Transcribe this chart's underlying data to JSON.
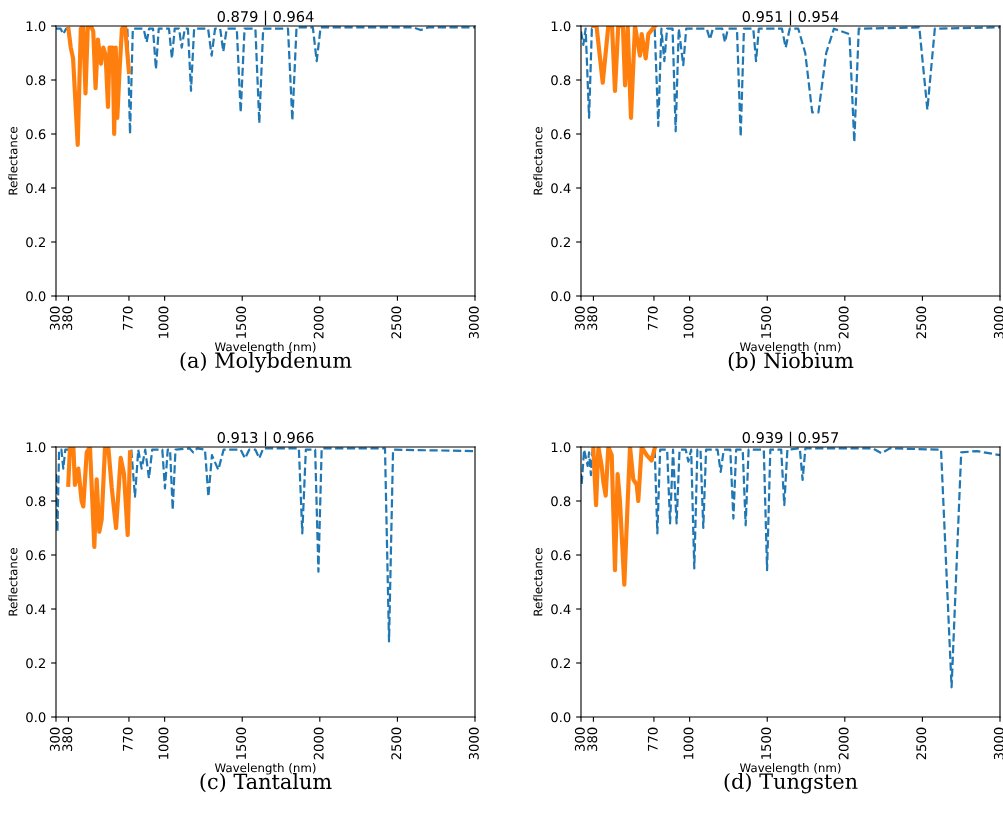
{
  "chart_data": [
    {
      "type": "line",
      "title": "0.879 | 0.964",
      "xlabel": "Wavelength (nm)",
      "ylabel": "Reflectance",
      "xlim": [
        300,
        3000
      ],
      "ylim": [
        0,
        1.0
      ],
      "xticks": [
        300,
        380,
        770,
        1000,
        1500,
        2000,
        2500,
        3000
      ],
      "yticks": [
        {
          "value": 0,
          "label": "0.0"
        },
        {
          "value": 0.2,
          "label": "0.2"
        },
        {
          "value": 0.4,
          "label": "0.4"
        },
        {
          "value": 0.6,
          "label": "0.6"
        },
        {
          "value": 0.8,
          "label": "0.8"
        },
        {
          "value": 1.0,
          "label": "1.0"
        }
      ],
      "annotations": [
        "(a) Molybdenum"
      ],
      "series": [
        {
          "color": "#1f77b4",
          "line_style": "dashed",
          "x": [
            300,
            330,
            347,
            365,
            380,
            575,
            760,
            777,
            795,
            865,
            884,
            900,
            925,
            944,
            962,
            1028,
            1047,
            1065,
            1093,
            1110,
            1130,
            1150,
            1170,
            1190,
            1280,
            1303,
            1325,
            1358,
            1378,
            1400,
            1465,
            1490,
            1515,
            1585,
            1610,
            1635,
            1795,
            1823,
            1850,
            1955,
            1980,
            2005,
            2600,
            2650,
            2700,
            3000
          ],
          "values": [
            0.99,
            0.99,
            0.97,
            0.99,
            0.99,
            null,
            0.99,
            0.6,
            0.99,
            0.99,
            0.94,
            0.99,
            0.99,
            0.84,
            0.99,
            0.99,
            0.88,
            0.99,
            0.99,
            0.92,
            0.99,
            0.99,
            0.76,
            0.99,
            0.99,
            0.89,
            0.99,
            0.99,
            0.905,
            0.99,
            0.99,
            0.68,
            0.99,
            0.99,
            0.64,
            0.99,
            0.99,
            0.65,
            0.995,
            0.995,
            0.87,
            0.995,
            0.995,
            0.985,
            0.995,
            0.995
          ]
        },
        {
          "color": "#ff7f0e",
          "line_style": "solid",
          "x": [
            380,
            395,
            410,
            440,
            460,
            475,
            490,
            505,
            525,
            540,
            555,
            570,
            590,
            605,
            620,
            635,
            645,
            665,
            675,
            685,
            695,
            710,
            725,
            745,
            770
          ],
          "values": [
            0.99,
            0.92,
            0.88,
            0.56,
            0.99,
            1.0,
            0.75,
            1.0,
            1.0,
            0.98,
            0.77,
            0.95,
            0.86,
            0.92,
            0.89,
            0.7,
            0.92,
            0.92,
            0.6,
            0.92,
            0.66,
            0.84,
            0.99,
            1.0,
            0.83
          ]
        }
      ]
    },
    {
      "type": "line",
      "title": "0.951 | 0.954",
      "xlabel": "Wavelength (nm)",
      "ylabel": "Reflectance",
      "xlim": [
        300,
        3000
      ],
      "ylim": [
        0,
        1.0
      ],
      "xticks": [
        300,
        380,
        770,
        1000,
        1500,
        2000,
        2500,
        3000
      ],
      "yticks": [
        {
          "value": 0,
          "label": "0.0"
        },
        {
          "value": 0.2,
          "label": "0.2"
        },
        {
          "value": 0.4,
          "label": "0.4"
        },
        {
          "value": 0.6,
          "label": "0.6"
        },
        {
          "value": 0.8,
          "label": "0.8"
        },
        {
          "value": 1.0,
          "label": "1.0"
        }
      ],
      "annotations": [
        "(b) Niobium"
      ],
      "series": [
        {
          "color": "#1f77b4",
          "line_style": "dashed",
          "x": [
            300,
            315,
            330,
            352,
            370,
            380,
            575,
            775,
            798,
            818,
            837,
            855,
            890,
            910,
            930,
            959,
            978,
            1110,
            1131,
            1150,
            1210,
            1228,
            1246,
            1305,
            1329,
            1350,
            1410,
            1428,
            1446,
            1595,
            1619,
            1645,
            1700,
            1745,
            1790,
            1830,
            1880,
            1930,
            2030,
            2061,
            2090,
            2480,
            2532,
            2580,
            3000
          ],
          "values": [
            0.98,
            0.93,
            0.99,
            0.66,
            0.99,
            0.99,
            null,
            0.99,
            0.63,
            0.99,
            0.87,
            0.99,
            0.99,
            0.61,
            0.99,
            0.855,
            0.99,
            0.99,
            0.95,
            0.99,
            0.99,
            0.94,
            0.99,
            0.99,
            0.59,
            0.99,
            0.99,
            0.87,
            0.99,
            0.99,
            0.92,
            0.99,
            0.99,
            0.9,
            0.68,
            0.68,
            0.9,
            0.99,
            0.97,
            0.57,
            0.99,
            0.995,
            0.69,
            0.99,
            0.995
          ]
        },
        {
          "color": "#ff7f0e",
          "line_style": "solid",
          "x": [
            379,
            400,
            440,
            476,
            500,
            519,
            540,
            551,
            570,
            584,
            601,
            622,
            648,
            680,
            691,
            717,
            734,
            777
          ],
          "values": [
            1.0,
            1.0,
            0.79,
            1.0,
            1.0,
            0.76,
            1.0,
            1.0,
            1.0,
            0.78,
            1.0,
            0.66,
            1.0,
            0.89,
            0.97,
            0.88,
            0.97,
            1.0
          ]
        }
      ]
    },
    {
      "type": "line",
      "title": "0.913 | 0.966",
      "xlabel": "Wavelength (nm)",
      "ylabel": "Reflectance",
      "xlim": [
        300,
        3000
      ],
      "ylim": [
        0,
        1.0
      ],
      "xticks": [
        300,
        380,
        770,
        1000,
        1500,
        2000,
        2500,
        3000
      ],
      "yticks": [
        {
          "value": 0,
          "label": "0.0"
        },
        {
          "value": 0.2,
          "label": "0.2"
        },
        {
          "value": 0.4,
          "label": "0.4"
        },
        {
          "value": 0.6,
          "label": "0.6"
        },
        {
          "value": 0.8,
          "label": "0.8"
        },
        {
          "value": 1.0,
          "label": "1.0"
        }
      ],
      "annotations": [
        "(c) Tantalum"
      ],
      "series": [
        {
          "color": "#1f77b4",
          "line_style": "dashed",
          "x": [
            300,
            309,
            320,
            335,
            347,
            360,
            380,
            575,
            785,
            809,
            830,
            852,
            875,
            899,
            920,
            985,
            1002,
            1020,
            1035,
            1052,
            1070,
            1160,
            1185,
            1210,
            1260,
            1282,
            1305,
            1346,
            1380,
            1490,
            1518,
            1545,
            1585,
            1610,
            1635,
            1865,
            1887,
            1910,
            1970,
            1991,
            2012,
            2420,
            2446,
            2472,
            3000
          ],
          "values": [
            0.9,
            0.686,
            0.99,
            0.99,
            0.92,
            0.99,
            0.99,
            null,
            0.99,
            0.816,
            0.99,
            0.92,
            0.99,
            0.884,
            0.99,
            0.99,
            0.847,
            0.99,
            0.99,
            0.767,
            0.99,
            0.995,
            0.98,
            0.995,
            0.99,
            0.816,
            0.97,
            0.915,
            0.99,
            0.99,
            0.958,
            0.99,
            0.99,
            0.958,
            0.995,
            0.995,
            0.68,
            0.99,
            0.99,
            0.538,
            0.995,
            0.995,
            0.28,
            0.99,
            0.985
          ]
        },
        {
          "color": "#ff7f0e",
          "line_style": "solid",
          "x": [
            379,
            390,
            412,
            422,
            444,
            465,
            476,
            498,
            519,
            547,
            562,
            579,
            594,
            616,
            637,
            659,
            687,
            717,
            738,
            762,
            777
          ],
          "values": [
            0.86,
            1.0,
            1.0,
            0.86,
            0.92,
            0.8,
            0.78,
            0.98,
            1.0,
            0.63,
            0.88,
            0.686,
            0.73,
            1.0,
            1.0,
            0.85,
            0.7,
            0.96,
            0.9,
            0.674,
            0.98
          ]
        }
      ]
    },
    {
      "type": "line",
      "title": "0.939 | 0.957",
      "xlabel": "Wavelength (nm)",
      "ylabel": "Reflectance",
      "xlim": [
        300,
        3000
      ],
      "ylim": [
        0,
        1.0
      ],
      "xticks": [
        300,
        380,
        770,
        1000,
        1500,
        2000,
        2500,
        3000
      ],
      "yticks": [
        {
          "value": 0,
          "label": "0.0"
        },
        {
          "value": 0.2,
          "label": "0.2"
        },
        {
          "value": 0.4,
          "label": "0.4"
        },
        {
          "value": 0.6,
          "label": "0.6"
        },
        {
          "value": 0.8,
          "label": "0.8"
        },
        {
          "value": 1.0,
          "label": "1.0"
        }
      ],
      "annotations": [
        "(d) Tungsten"
      ],
      "series": [
        {
          "color": "#1f77b4",
          "line_style": "dashed",
          "x": [
            300,
            304,
            320,
            343,
            352,
            364,
            375,
            380,
            575,
            775,
            792,
            810,
            855,
            874,
            893,
            916,
            935,
            975,
            992,
            1010,
            1030,
            1050,
            1070,
            1088,
            1106,
            1180,
            1200,
            1220,
            1262,
            1282,
            1300,
            1342,
            1361,
            1380,
            1478,
            1499,
            1520,
            1590,
            1610,
            1630,
            1710,
            1728,
            1746,
            2180,
            2237,
            2290,
            2620,
            2688,
            2750,
            2850,
            3000
          ],
          "values": [
            0.9,
            0.86,
            0.99,
            0.93,
            0.98,
            0.896,
            0.99,
            0.99,
            null,
            0.99,
            0.68,
            0.99,
            0.99,
            0.717,
            0.99,
            0.717,
            0.99,
            0.99,
            0.946,
            0.99,
            0.55,
            0.99,
            0.99,
            0.7,
            0.99,
            0.99,
            0.908,
            0.99,
            0.99,
            0.735,
            0.99,
            0.99,
            0.71,
            0.99,
            0.99,
            0.544,
            0.99,
            0.99,
            0.785,
            0.99,
            0.995,
            0.878,
            0.995,
            0.995,
            0.977,
            0.995,
            0.99,
            0.11,
            0.98,
            0.985,
            0.97
          ]
        },
        {
          "color": "#ff7f0e",
          "line_style": "solid",
          "x": [
            379,
            397,
            412,
            433,
            444,
            459,
            476,
            498,
            519,
            536,
            551,
            579,
            601,
            616,
            637,
            659,
            669,
            691,
            723,
            755,
            777
          ],
          "values": [
            1.0,
            0.785,
            1.0,
            0.93,
            0.87,
            0.82,
            1.0,
            0.97,
            0.544,
            0.9,
            0.8,
            0.49,
            0.8,
            1.0,
            0.88,
            0.86,
            0.8,
            1.0,
            0.97,
            0.95,
            1.0
          ]
        }
      ]
    }
  ]
}
